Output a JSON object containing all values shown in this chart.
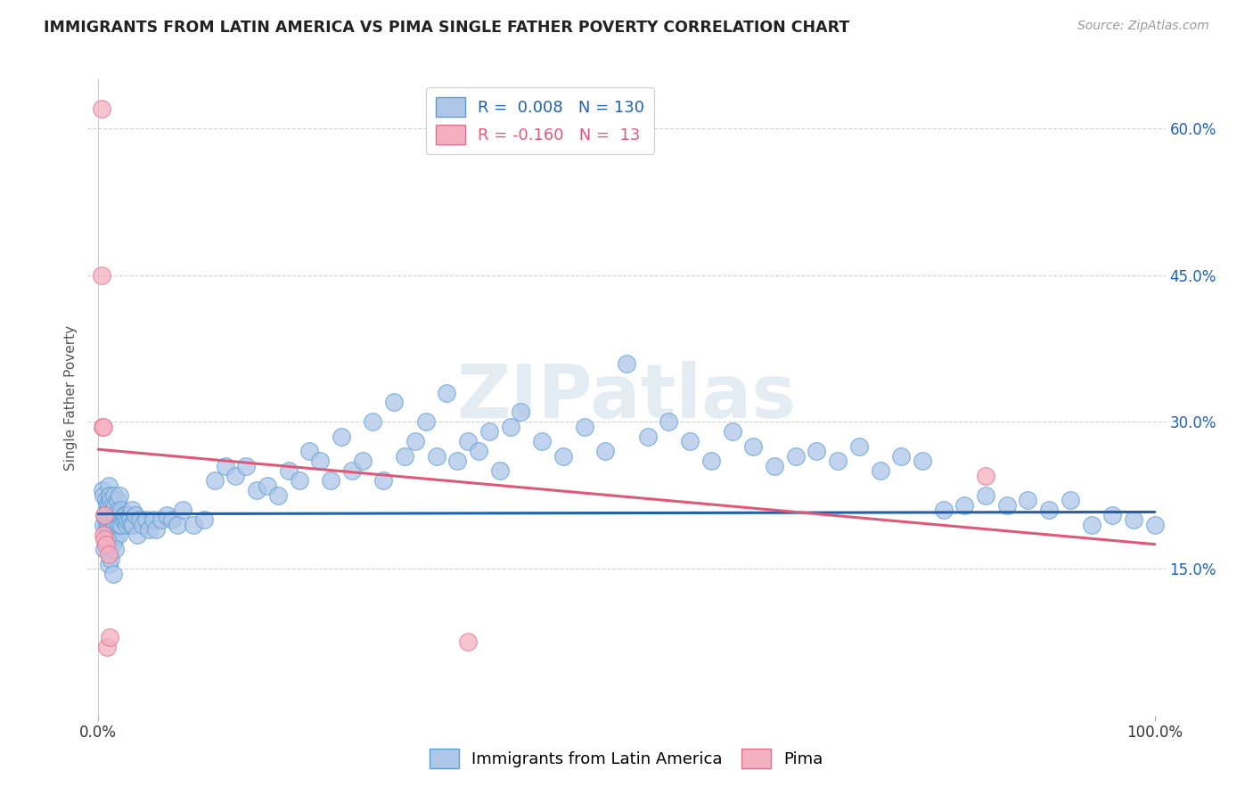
{
  "title": "IMMIGRANTS FROM LATIN AMERICA VS PIMA SINGLE FATHER POVERTY CORRELATION CHART",
  "source": "Source: ZipAtlas.com",
  "ylabel": "Single Father Poverty",
  "xlim": [
    -0.01,
    1.01
  ],
  "ylim": [
    0.0,
    0.65
  ],
  "ytick_right_vals": [
    0.15,
    0.3,
    0.45,
    0.6
  ],
  "ytick_right_labels": [
    "15.0%",
    "30.0%",
    "45.0%",
    "60.0%"
  ],
  "xtick_vals": [
    0.0,
    1.0
  ],
  "xtick_labels": [
    "0.0%",
    "100.0%"
  ],
  "blue_R": 0.008,
  "blue_N": 130,
  "pink_R": -0.16,
  "pink_N": 13,
  "blue_fill": "#aec6e8",
  "blue_edge": "#5a9fd4",
  "pink_fill": "#f4afc0",
  "pink_edge": "#e07090",
  "blue_line_color": "#2060b0",
  "pink_line_color": "#e05878",
  "title_color": "#222222",
  "source_color": "#999999",
  "watermark": "ZIPatlas",
  "background_color": "#ffffff",
  "grid_color": "#d0d0d0",
  "blue_line_y0": 0.206,
  "blue_line_y1": 0.208,
  "pink_line_y0": 0.272,
  "pink_line_y1": 0.175,
  "blue_scatter_x": [
    0.004,
    0.005,
    0.005,
    0.006,
    0.007,
    0.007,
    0.008,
    0.008,
    0.009,
    0.009,
    0.01,
    0.01,
    0.01,
    0.011,
    0.011,
    0.012,
    0.012,
    0.013,
    0.013,
    0.013,
    0.014,
    0.014,
    0.015,
    0.015,
    0.015,
    0.016,
    0.016,
    0.017,
    0.017,
    0.018,
    0.018,
    0.019,
    0.019,
    0.02,
    0.02,
    0.021,
    0.022,
    0.022,
    0.023,
    0.024,
    0.025,
    0.026,
    0.027,
    0.028,
    0.029,
    0.03,
    0.031,
    0.032,
    0.033,
    0.035,
    0.037,
    0.039,
    0.042,
    0.045,
    0.048,
    0.052,
    0.055,
    0.06,
    0.065,
    0.07,
    0.075,
    0.08,
    0.09,
    0.1,
    0.11,
    0.12,
    0.13,
    0.14,
    0.15,
    0.16,
    0.17,
    0.18,
    0.19,
    0.2,
    0.21,
    0.22,
    0.23,
    0.24,
    0.25,
    0.26,
    0.27,
    0.28,
    0.29,
    0.3,
    0.31,
    0.32,
    0.33,
    0.34,
    0.35,
    0.36,
    0.37,
    0.38,
    0.39,
    0.4,
    0.42,
    0.44,
    0.46,
    0.48,
    0.5,
    0.52,
    0.54,
    0.56,
    0.58,
    0.6,
    0.62,
    0.64,
    0.66,
    0.68,
    0.7,
    0.72,
    0.74,
    0.76,
    0.78,
    0.8,
    0.82,
    0.84,
    0.86,
    0.88,
    0.9,
    0.92,
    0.94,
    0.96,
    0.98,
    1.0,
    0.006,
    0.008,
    0.01,
    0.012,
    0.014,
    0.016
  ],
  "blue_scatter_y": [
    0.23,
    0.225,
    0.195,
    0.205,
    0.22,
    0.2,
    0.215,
    0.195,
    0.21,
    0.19,
    0.235,
    0.215,
    0.195,
    0.225,
    0.2,
    0.22,
    0.185,
    0.215,
    0.195,
    0.175,
    0.21,
    0.19,
    0.225,
    0.2,
    0.18,
    0.215,
    0.195,
    0.205,
    0.185,
    0.22,
    0.195,
    0.21,
    0.185,
    0.225,
    0.195,
    0.205,
    0.195,
    0.21,
    0.2,
    0.205,
    0.2,
    0.205,
    0.195,
    0.2,
    0.205,
    0.2,
    0.195,
    0.21,
    0.195,
    0.205,
    0.185,
    0.2,
    0.195,
    0.2,
    0.19,
    0.2,
    0.19,
    0.2,
    0.205,
    0.2,
    0.195,
    0.21,
    0.195,
    0.2,
    0.24,
    0.255,
    0.245,
    0.255,
    0.23,
    0.235,
    0.225,
    0.25,
    0.24,
    0.27,
    0.26,
    0.24,
    0.285,
    0.25,
    0.26,
    0.3,
    0.24,
    0.32,
    0.265,
    0.28,
    0.3,
    0.265,
    0.33,
    0.26,
    0.28,
    0.27,
    0.29,
    0.25,
    0.295,
    0.31,
    0.28,
    0.265,
    0.295,
    0.27,
    0.36,
    0.285,
    0.3,
    0.28,
    0.26,
    0.29,
    0.275,
    0.255,
    0.265,
    0.27,
    0.26,
    0.275,
    0.25,
    0.265,
    0.26,
    0.21,
    0.215,
    0.225,
    0.215,
    0.22,
    0.21,
    0.22,
    0.195,
    0.205,
    0.2,
    0.195,
    0.17,
    0.18,
    0.155,
    0.16,
    0.145,
    0.17
  ],
  "pink_scatter_x": [
    0.003,
    0.003,
    0.004,
    0.005,
    0.005,
    0.006,
    0.006,
    0.007,
    0.008,
    0.01,
    0.011,
    0.84,
    0.35
  ],
  "pink_scatter_y": [
    0.62,
    0.45,
    0.295,
    0.295,
    0.185,
    0.205,
    0.18,
    0.175,
    0.07,
    0.165,
    0.08,
    0.245,
    0.075
  ]
}
